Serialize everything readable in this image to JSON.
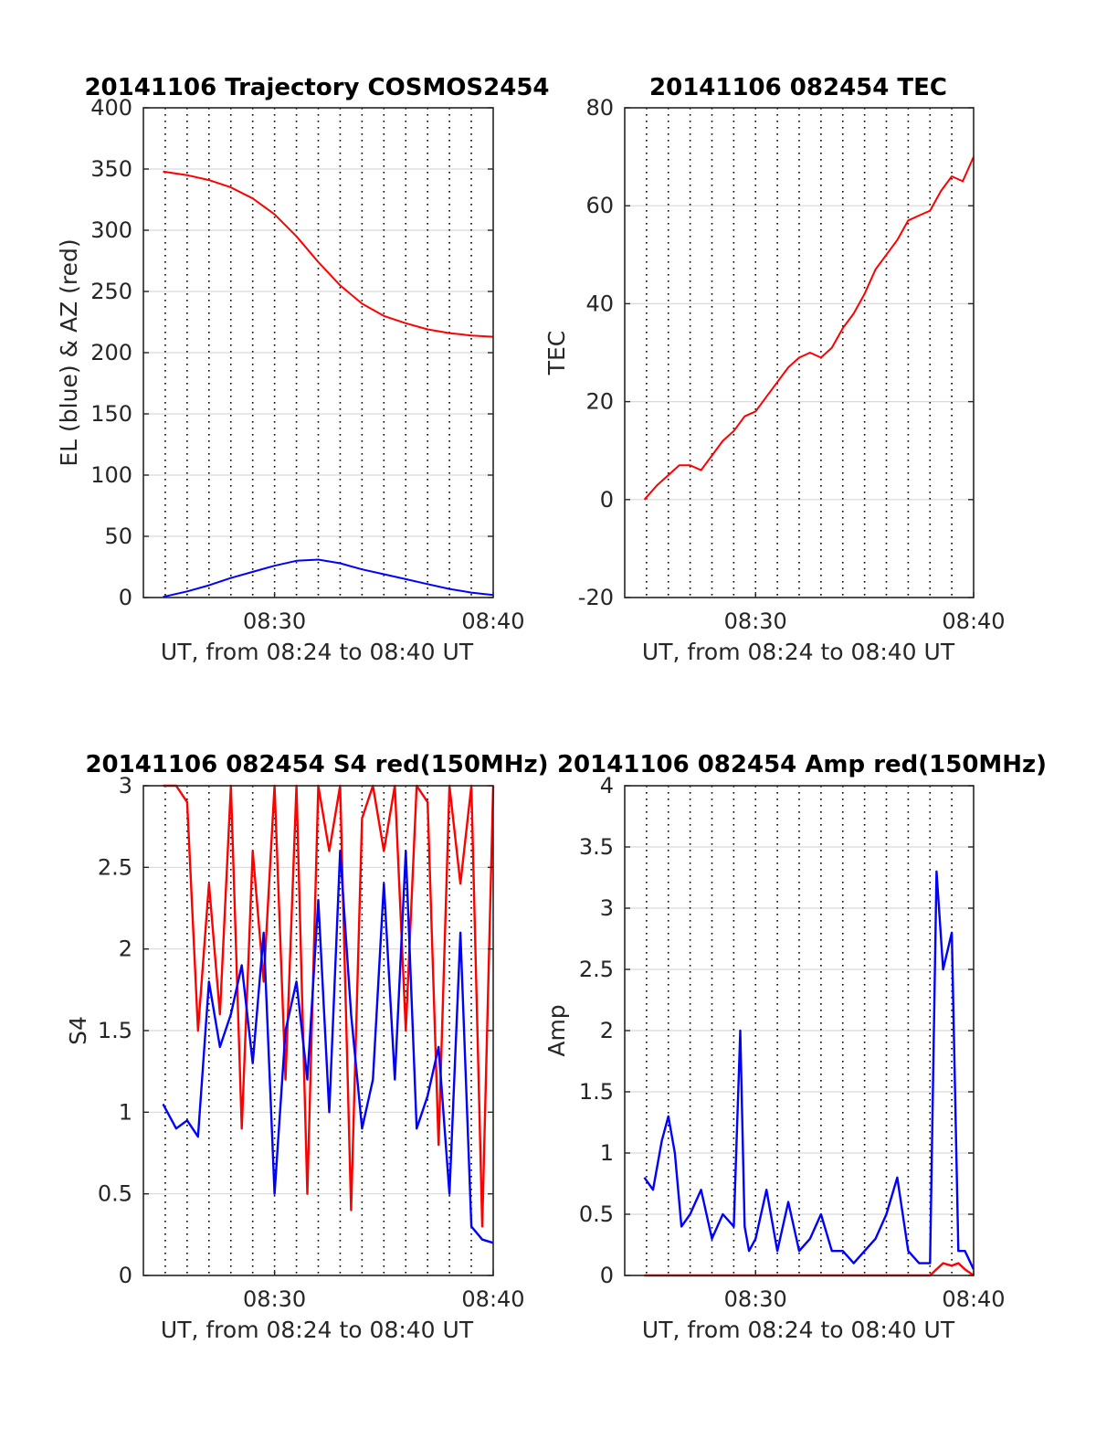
{
  "figure": {
    "background": "#ffffff"
  },
  "colors": {
    "red": "#ff0000",
    "blue": "#0000ff",
    "grid_h": "#d9d9d9",
    "grid_v": "#000000",
    "axis": "#262626"
  },
  "chart_data": [
    {
      "type": "line",
      "title": "20141106 Trajectory COSMOS2454",
      "xlabel": "UT, from 08:24 to 08:40 UT",
      "ylabel": "EL (blue) & AZ (red)",
      "xlim": [
        "08:24",
        "08:40"
      ],
      "ylim": [
        0,
        400
      ],
      "xticks": [
        "08:30",
        "08:40"
      ],
      "yticks": [
        "0",
        "50",
        "100",
        "150",
        "200",
        "250",
        "300",
        "350",
        "400"
      ],
      "ytick_values": [
        0,
        50,
        100,
        150,
        200,
        250,
        300,
        350,
        400
      ],
      "grid": "horizontal solid, vertical dotted every minute",
      "x_minutes": [
        0.9,
        2,
        3,
        4,
        5,
        6,
        7,
        8,
        9,
        10,
        11,
        12,
        13,
        14,
        15,
        16
      ],
      "series": [
        {
          "color": "#ff0000",
          "values": [
            348,
            345,
            341,
            335,
            326,
            313,
            295,
            274,
            255,
            240,
            230,
            224,
            219,
            216,
            214,
            213
          ]
        },
        {
          "color": "#0000ff",
          "values": [
            0.5,
            5,
            10,
            16,
            21,
            26,
            30,
            31,
            28,
            23,
            19,
            15,
            11,
            7,
            4,
            2
          ]
        }
      ]
    },
    {
      "type": "line",
      "title": "20141106 082454 TEC",
      "xlabel": "UT, from 08:24 to 08:40 UT",
      "ylabel": "TEC",
      "xlim": [
        "08:24",
        "08:40"
      ],
      "ylim": [
        -20,
        80
      ],
      "xticks": [
        "08:30",
        "08:40"
      ],
      "yticks": [
        "-20",
        "0",
        "20",
        "40",
        "60",
        "80"
      ],
      "ytick_values": [
        -20,
        0,
        20,
        40,
        60,
        80
      ],
      "grid": "horizontal solid, vertical dotted every minute",
      "x_minutes": [
        0.9,
        1.5,
        2,
        2.5,
        3,
        3.5,
        4,
        4.5,
        5,
        5.5,
        6,
        6.5,
        7,
        7.5,
        8,
        8.5,
        9,
        9.5,
        10,
        10.5,
        11,
        11.5,
        12,
        12.5,
        13,
        13.5,
        14,
        14.5,
        15,
        15.5,
        16
      ],
      "series": [
        {
          "color": "#ff0000",
          "values": [
            0,
            3,
            5,
            7,
            7,
            6,
            9,
            12,
            14,
            17,
            18,
            21,
            24,
            27,
            29,
            30,
            29,
            31,
            35,
            38,
            42,
            47,
            50,
            53,
            57,
            58,
            59,
            63,
            66,
            65,
            70
          ]
        }
      ]
    },
    {
      "type": "line",
      "title": "20141106 082454 S4 red(150MHz)",
      "xlabel": "UT, from 08:24 to 08:40 UT",
      "ylabel": "S4",
      "xlim": [
        "08:24",
        "08:40"
      ],
      "ylim": [
        0,
        3
      ],
      "xticks": [
        "08:30",
        "08:40"
      ],
      "yticks": [
        "0",
        "0.5",
        "1",
        "1.5",
        "2",
        "2.5",
        "3"
      ],
      "ytick_values": [
        0,
        0.5,
        1,
        1.5,
        2,
        2.5,
        3
      ],
      "grid": "horizontal solid, vertical dotted every minute",
      "x_minutes": [
        0.9,
        1.5,
        2,
        2.5,
        3,
        3.5,
        4,
        4.5,
        5,
        5.5,
        6,
        6.5,
        7,
        7.5,
        8,
        8.5,
        9,
        9.5,
        10,
        10.5,
        11,
        11.5,
        12,
        12.5,
        13,
        13.5,
        14,
        14.5,
        15,
        15.5,
        16
      ],
      "series": [
        {
          "color": "#ff0000",
          "values": [
            3,
            3,
            2.9,
            1.5,
            2.4,
            1.6,
            3,
            0.9,
            2.6,
            1.8,
            3,
            1.2,
            3,
            0.5,
            3,
            2.6,
            3,
            0.4,
            2.8,
            3,
            2.6,
            3,
            1.5,
            3,
            2.9,
            0.8,
            3,
            2.4,
            3,
            0.3,
            3
          ]
        },
        {
          "color": "#0000ff",
          "values": [
            1.05,
            0.9,
            0.95,
            0.85,
            1.8,
            1.4,
            1.6,
            1.9,
            1.3,
            2.1,
            0.5,
            1.5,
            1.8,
            1.2,
            2.3,
            1.0,
            2.6,
            1.6,
            0.9,
            1.2,
            2.4,
            1.2,
            2.6,
            0.9,
            1.1,
            1.4,
            0.5,
            2.1,
            0.3,
            0.22,
            0.2
          ]
        }
      ]
    },
    {
      "type": "line",
      "title": "20141106 082454 Amp red(150MHz)",
      "xlabel": "UT, from 08:24 to 08:40 UT",
      "ylabel": "Amp",
      "xlim": [
        "08:24",
        "08:40"
      ],
      "ylim": [
        0,
        4
      ],
      "xticks": [
        "08:30",
        "08:40"
      ],
      "yticks": [
        "0",
        "0.5",
        "1",
        "1.5",
        "2",
        "2.5",
        "3",
        "3.5",
        "4"
      ],
      "ytick_values": [
        0,
        0.5,
        1,
        1.5,
        2,
        2.5,
        3,
        3.5,
        4
      ],
      "grid": "horizontal solid, vertical dotted every minute",
      "x_minutes": [
        0.9,
        1.3,
        1.7,
        2.0,
        2.3,
        2.6,
        3.0,
        3.5,
        4.0,
        4.5,
        5.0,
        5.3,
        5.5,
        5.7,
        6.0,
        6.5,
        7.0,
        7.5,
        8.0,
        8.5,
        9.0,
        9.5,
        10.0,
        10.5,
        11.0,
        11.5,
        12.0,
        12.5,
        13.0,
        13.5,
        14.0,
        14.3,
        14.6,
        15.0,
        15.3,
        15.6,
        16.0
      ],
      "series": [
        {
          "color": "#ff0000",
          "values": [
            0,
            0,
            0,
            0,
            0,
            0,
            0,
            0,
            0,
            0,
            0,
            0,
            0,
            0,
            0,
            0,
            0,
            0,
            0,
            0,
            0,
            0,
            0,
            0,
            0,
            0,
            0,
            0,
            0,
            0,
            0,
            0.05,
            0.1,
            0.08,
            0.1,
            0.05,
            0
          ]
        },
        {
          "color": "#0000ff",
          "values": [
            0.8,
            0.7,
            1.1,
            1.3,
            1.0,
            0.4,
            0.5,
            0.7,
            0.3,
            0.5,
            0.4,
            2.0,
            0.4,
            0.2,
            0.3,
            0.7,
            0.2,
            0.6,
            0.2,
            0.3,
            0.5,
            0.2,
            0.2,
            0.1,
            0.2,
            0.3,
            0.5,
            0.8,
            0.2,
            0.1,
            0.1,
            3.3,
            2.5,
            2.8,
            0.2,
            0.2,
            0.05
          ]
        }
      ]
    }
  ]
}
